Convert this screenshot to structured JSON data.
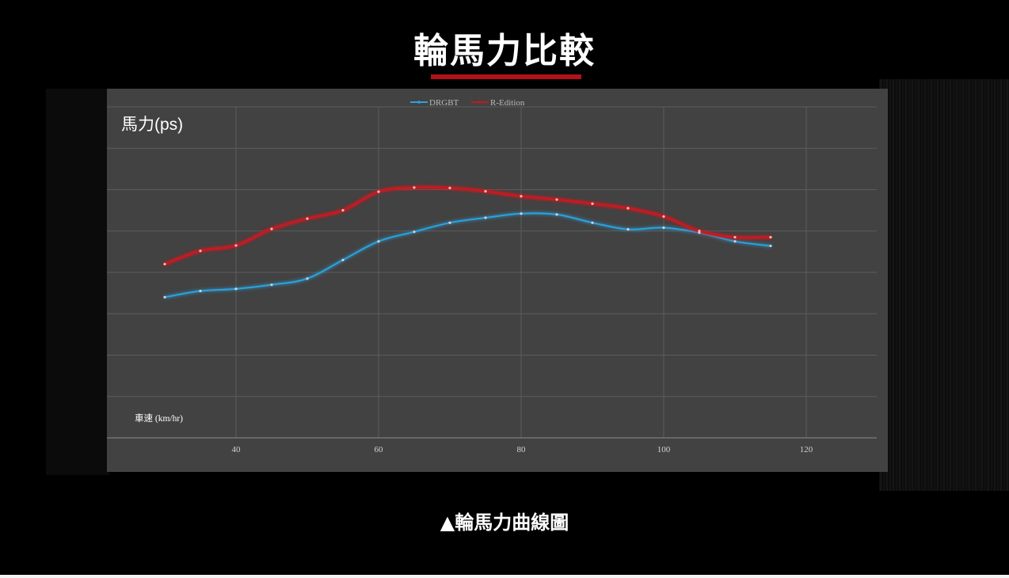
{
  "page": {
    "title": "輪馬力比較",
    "caption": "▲輪馬力曲線圖"
  },
  "colors": {
    "accent_red": "#b0121a",
    "drgbt_line": "#29a3e0",
    "redition_line": "#c01a24",
    "panel_bg": "#424242"
  },
  "chart_data": {
    "type": "line",
    "title": "",
    "ylabel": "馬力(ps)",
    "xlabel": "車速 (km/hr)",
    "x": [
      30,
      35,
      40,
      45,
      50,
      55,
      60,
      65,
      70,
      75,
      80,
      85,
      90,
      95,
      100,
      105,
      110,
      115
    ],
    "xlim": [
      16,
      126
    ],
    "ylim": [
      0,
      8
    ],
    "xticks": [
      "40",
      "60",
      "80",
      "100",
      "120"
    ],
    "grid": true,
    "legend_position": "top-center",
    "series": [
      {
        "name": "DRGBT",
        "color": "#29a3e0",
        "values": [
          3.4,
          3.55,
          3.6,
          3.7,
          3.85,
          4.3,
          4.75,
          4.98,
          5.2,
          5.32,
          5.42,
          5.4,
          5.2,
          5.04,
          5.08,
          4.96,
          4.75,
          4.64
        ]
      },
      {
        "name": "R-Edition",
        "color": "#c01a24",
        "values": [
          4.2,
          4.52,
          4.65,
          5.05,
          5.3,
          5.5,
          5.95,
          6.05,
          6.04,
          5.96,
          5.84,
          5.76,
          5.66,
          5.55,
          5.35,
          5.0,
          4.85,
          4.85
        ]
      }
    ]
  }
}
